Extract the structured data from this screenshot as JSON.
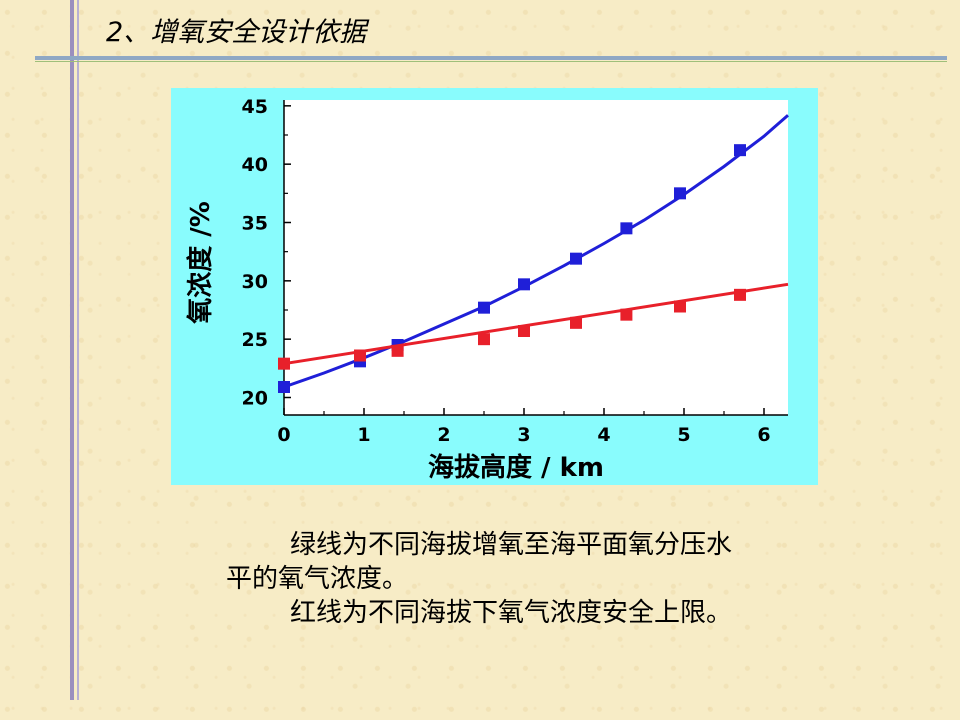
{
  "slide": {
    "title": "2、增氧安全设计依据",
    "caption_lines": [
      "绿线为不同海拔增氧至海平面氧分压水",
      "平的氧气浓度。",
      "红线为不同海拔下氧气浓度安全上限。"
    ]
  },
  "colors": {
    "background": "#f7ecc6",
    "chart_bg": "#89fcfd",
    "blue": "#1f1fd8",
    "red": "#e8202a"
  },
  "chart_data": {
    "type": "line",
    "title": "",
    "xlabel": "海拔高度 / km",
    "ylabel": "氧浓度 /%",
    "xlim": [
      0,
      6.3
    ],
    "ylim": [
      18.5,
      45.5
    ],
    "xticks": [
      0,
      1,
      2,
      3,
      4,
      5,
      6
    ],
    "yticks": [
      20,
      25,
      30,
      35,
      40,
      45
    ],
    "grid": false,
    "series": [
      {
        "color": "#1f1fd8",
        "line_x": [
          0,
          0.5,
          1.0,
          1.5,
          2.0,
          2.5,
          3.0,
          3.5,
          4.0,
          4.5,
          5.0,
          5.5,
          6.0,
          6.3
        ],
        "line_y": [
          20.9,
          22.1,
          23.4,
          24.8,
          26.3,
          27.8,
          29.5,
          31.3,
          33.2,
          35.2,
          37.4,
          39.8,
          42.4,
          44.2
        ],
        "marker_x": [
          0,
          0.95,
          1.42,
          2.5,
          3.0,
          3.65,
          4.28,
          4.95,
          5.7
        ],
        "marker_y": [
          20.9,
          23.1,
          24.5,
          27.7,
          29.7,
          31.9,
          34.5,
          37.5,
          41.2
        ]
      },
      {
        "color": "#e8202a",
        "line_x": [
          0,
          6.3
        ],
        "line_y": [
          22.9,
          29.7
        ],
        "marker_x": [
          0,
          0.95,
          1.42,
          2.5,
          3.0,
          3.65,
          4.28,
          4.95,
          5.7
        ],
        "marker_y": [
          22.9,
          23.6,
          24.0,
          25.0,
          25.7,
          26.4,
          27.1,
          27.8,
          28.8
        ]
      }
    ]
  }
}
